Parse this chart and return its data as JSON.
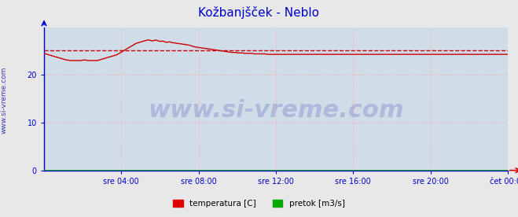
{
  "title": "Kožbanjšček - Neblo",
  "title_color": "#0000cc",
  "title_fontsize": 11,
  "fig_bg_color": "#e8e8e8",
  "plot_bg_color": "#d0dce8",
  "xlim": [
    0,
    288
  ],
  "ylim": [
    0,
    30
  ],
  "yticks": [
    0,
    10,
    20
  ],
  "xtick_labels": [
    "sre 04:00",
    "sre 08:00",
    "sre 12:00",
    "sre 16:00",
    "sre 20:00",
    "čet 00:00"
  ],
  "xtick_positions": [
    48,
    96,
    144,
    192,
    240,
    288
  ],
  "grid_color": "#ffaaaa",
  "grid_style": ":",
  "axis_color": "#0000cc",
  "watermark": "www.si-vreme.com",
  "watermark_color": "#1a1aaa",
  "watermark_alpha": 0.18,
  "watermark_fontsize": 22,
  "side_label": "www.si-vreme.com",
  "side_label_color": "#0000aa",
  "side_label_fontsize": 6.5,
  "legend_labels": [
    "temperatura [C]",
    "pretok [m3/s]"
  ],
  "legend_colors": [
    "#dd0000",
    "#00aa00"
  ],
  "temp_color": "#cc0000",
  "avg_color": "#cc0000",
  "avg_linestyle": "--",
  "flow_color": "#00bb00",
  "avg_value": 25.1,
  "flow_value": 0.02,
  "temp_data": [
    24.5,
    24.4,
    24.3,
    24.2,
    24.1,
    24.0,
    23.9,
    23.8,
    23.7,
    23.6,
    23.5,
    23.4,
    23.3,
    23.2,
    23.1,
    23.1,
    23.0,
    23.0,
    23.0,
    23.0,
    23.0,
    23.0,
    23.0,
    23.0,
    23.1,
    23.1,
    23.1,
    23.0,
    23.0,
    23.0,
    23.0,
    23.0,
    23.0,
    23.0,
    23.1,
    23.2,
    23.3,
    23.4,
    23.5,
    23.6,
    23.7,
    23.8,
    23.9,
    24.0,
    24.1,
    24.2,
    24.4,
    24.6,
    24.8,
    25.0,
    25.2,
    25.4,
    25.6,
    25.8,
    26.0,
    26.2,
    26.4,
    26.6,
    26.7,
    26.8,
    26.9,
    27.0,
    27.1,
    27.2,
    27.3,
    27.3,
    27.2,
    27.1,
    27.2,
    27.3,
    27.2,
    27.1,
    27.0,
    27.1,
    27.0,
    26.9,
    26.8,
    26.9,
    26.9,
    26.8,
    26.7,
    26.7,
    26.6,
    26.6,
    26.5,
    26.5,
    26.4,
    26.4,
    26.3,
    26.3,
    26.2,
    26.1,
    26.0,
    25.9,
    25.8,
    25.8,
    25.7,
    25.7,
    25.6,
    25.6,
    25.5,
    25.5,
    25.4,
    25.4,
    25.3,
    25.3,
    25.2,
    25.2,
    25.1,
    25.1,
    25.0,
    25.0,
    24.9,
    24.9,
    24.8,
    24.8,
    24.7,
    24.7,
    24.7,
    24.7,
    24.6,
    24.6,
    24.6,
    24.6,
    24.5,
    24.5,
    24.5,
    24.5,
    24.5,
    24.5,
    24.4,
    24.4,
    24.4,
    24.4,
    24.4,
    24.4,
    24.4,
    24.4,
    24.3,
    24.3,
    24.3,
    24.3,
    24.3,
    24.3,
    24.3,
    24.3,
    24.3,
    24.3,
    24.3,
    24.3,
    24.3,
    24.3,
    24.3,
    24.3,
    24.3,
    24.3,
    24.3,
    24.3,
    24.3,
    24.3,
    24.3,
    24.3,
    24.3,
    24.3,
    24.3,
    24.3,
    24.3,
    24.3,
    24.3,
    24.3,
    24.3,
    24.3,
    24.3,
    24.3,
    24.3,
    24.3,
    24.3,
    24.3,
    24.3,
    24.3,
    24.3,
    24.3,
    24.3,
    24.3,
    24.3,
    24.3,
    24.3,
    24.3,
    24.3,
    24.3,
    24.3,
    24.3,
    24.3,
    24.3,
    24.3,
    24.3,
    24.3,
    24.3,
    24.3,
    24.3,
    24.3,
    24.3,
    24.3,
    24.3,
    24.3,
    24.3,
    24.3,
    24.3,
    24.3,
    24.3,
    24.3,
    24.3,
    24.3,
    24.3,
    24.3,
    24.3,
    24.3,
    24.3,
    24.3,
    24.3,
    24.3,
    24.3,
    24.3,
    24.3,
    24.3,
    24.3,
    24.3,
    24.3,
    24.3,
    24.3,
    24.3,
    24.3,
    24.3,
    24.3,
    24.3,
    24.3,
    24.3,
    24.3,
    24.3,
    24.3,
    24.3,
    24.3,
    24.3,
    24.3,
    24.3,
    24.3,
    24.3,
    24.3,
    24.3,
    24.3,
    24.3,
    24.3,
    24.3,
    24.3,
    24.3,
    24.3,
    24.3,
    24.3,
    24.3,
    24.3,
    24.3,
    24.3,
    24.3,
    24.3,
    24.3,
    24.3,
    24.3,
    24.3,
    24.3,
    24.3,
    24.3,
    24.3,
    24.3,
    24.3,
    24.3,
    24.3,
    24.3,
    24.3,
    24.3,
    24.3,
    24.3,
    24.3,
    24.3,
    24.3,
    24.3,
    24.3,
    24.3,
    24.3
  ]
}
